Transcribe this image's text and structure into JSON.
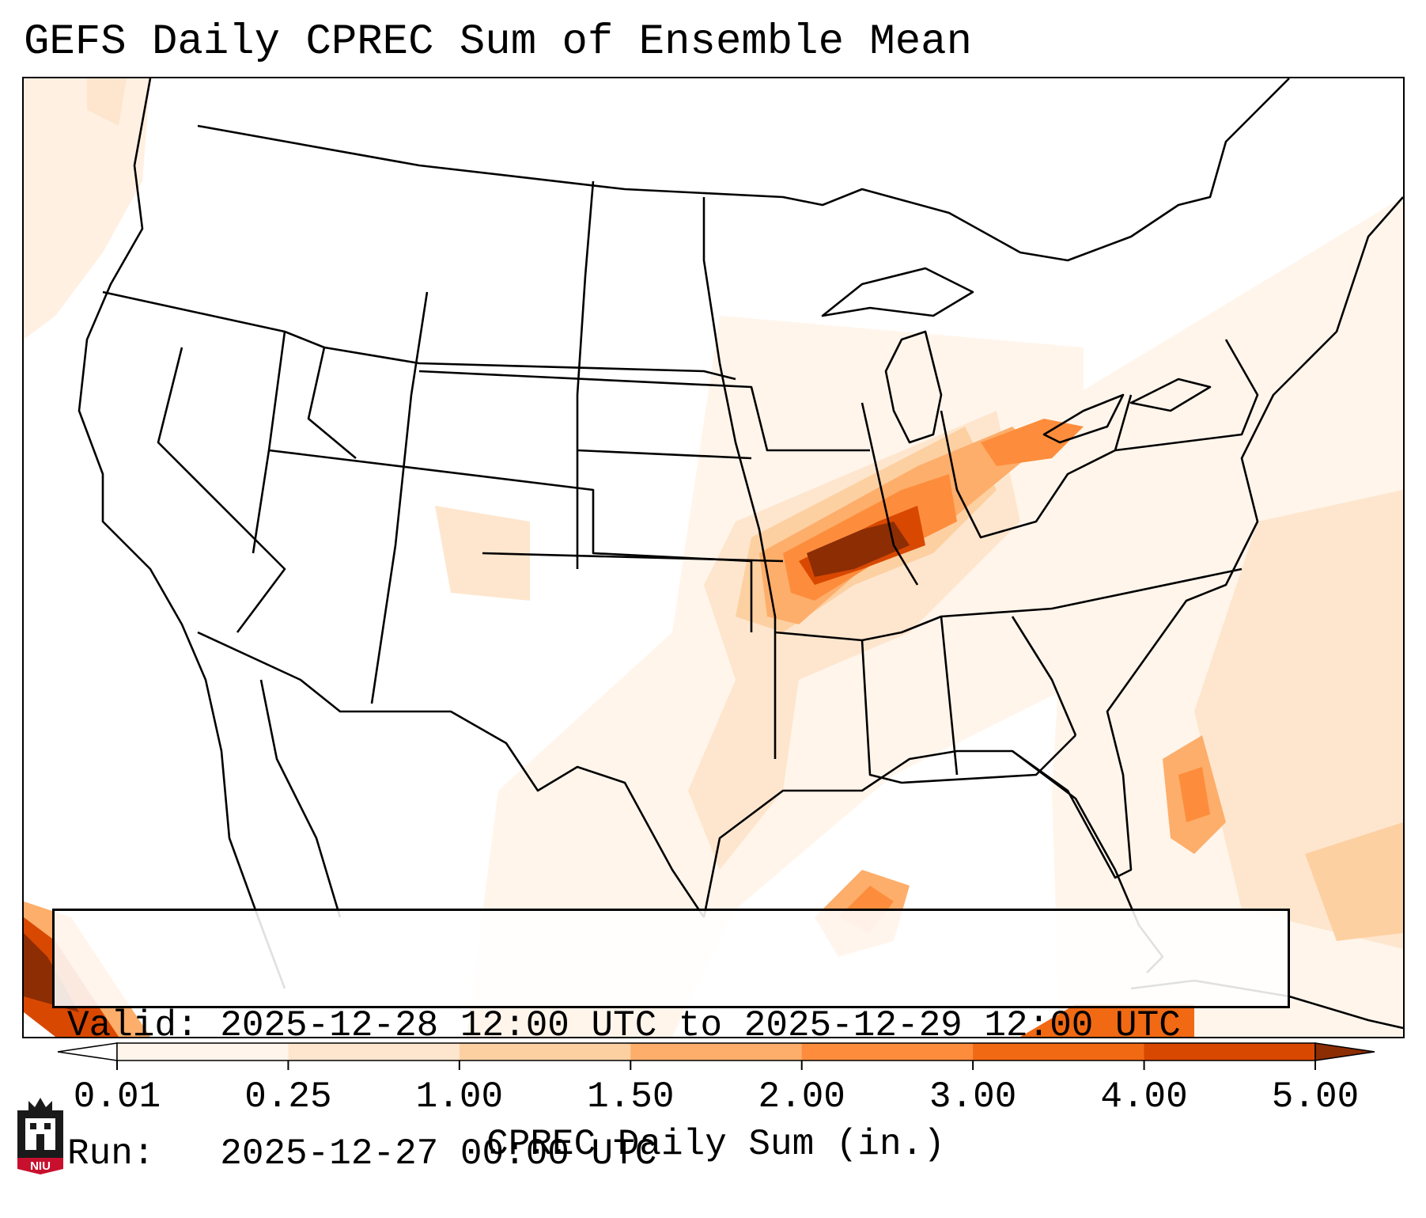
{
  "title": "GEFS Daily CPREC Sum of Ensemble Mean",
  "info": {
    "valid": "Valid: 2025-12-28 12:00 UTC to 2025-12-29 12:00 UTC",
    "run": "Run:   2025-12-27 00:00 UTC"
  },
  "colorbar": {
    "label": "CPREC Daily Sum (in.)",
    "units": "in.",
    "levels": [
      0.01,
      0.25,
      1.0,
      1.5,
      2.0,
      3.0,
      4.0,
      5.0
    ],
    "tick_labels": [
      "0.01",
      "0.25",
      "1.00",
      "1.50",
      "2.00",
      "3.00",
      "4.00",
      "5.00"
    ],
    "colors": [
      "#fff5eb",
      "#fee6ce",
      "#fdd0a2",
      "#fdae6b",
      "#fd8d3c",
      "#f16913",
      "#d94801",
      "#8c2d04"
    ],
    "extend": "both"
  },
  "map": {
    "region": "Contiguous United States",
    "highlights": [
      {
        "area": "Missouri / Illinois",
        "category": ">= 5.00"
      },
      {
        "area": "Indiana / Ohio / Lake Erie",
        "category": "2.00-3.00"
      },
      {
        "area": "Louisiana Gulf coast",
        "category": "2.00-3.00"
      },
      {
        "area": "Atlantic off Georgia",
        "category": "2.00-3.00"
      },
      {
        "area": "Pacific off Mexico",
        "category": ">= 5.00"
      }
    ]
  },
  "logo": {
    "text": "NIU"
  }
}
